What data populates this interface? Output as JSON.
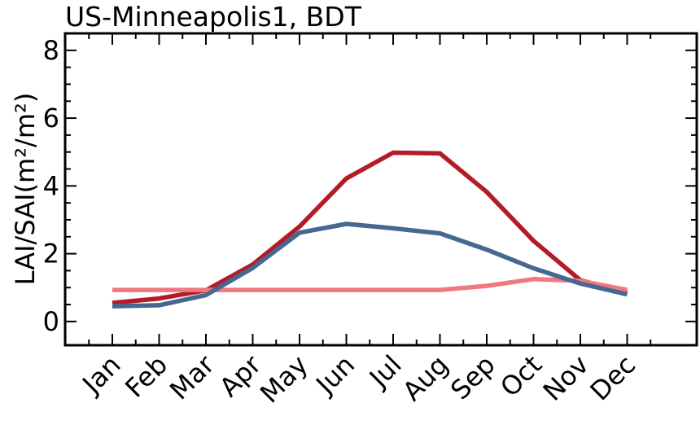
{
  "chart_data": {
    "type": "line",
    "title": "US-Minneapolis1, BDT",
    "ylabel": "LAI/SAI(m²/m²)",
    "xlabel": "",
    "categories": [
      "Jan",
      "Feb",
      "Mar",
      "Apr",
      "May",
      "Jun",
      "Jul",
      "Aug",
      "Sep",
      "Oct",
      "Nov",
      "Dec"
    ],
    "ylim": [
      -0.7,
      8.5
    ],
    "yticks": [
      0,
      2,
      4,
      6,
      8
    ],
    "grid": false,
    "series": [
      {
        "color": "#b31b28",
        "values": [
          0.55,
          0.68,
          0.92,
          1.68,
          2.8,
          4.22,
          4.98,
          4.96,
          3.82,
          2.38,
          1.22,
          0.85
        ]
      },
      {
        "color": "#f07880",
        "values": [
          0.93,
          0.93,
          0.93,
          0.93,
          0.93,
          0.93,
          0.93,
          0.93,
          1.05,
          1.25,
          1.2,
          0.93
        ]
      },
      {
        "color": "#456891",
        "values": [
          0.45,
          0.48,
          0.78,
          1.58,
          2.62,
          2.88,
          2.75,
          2.6,
          2.12,
          1.57,
          1.12,
          0.8
        ]
      }
    ]
  }
}
